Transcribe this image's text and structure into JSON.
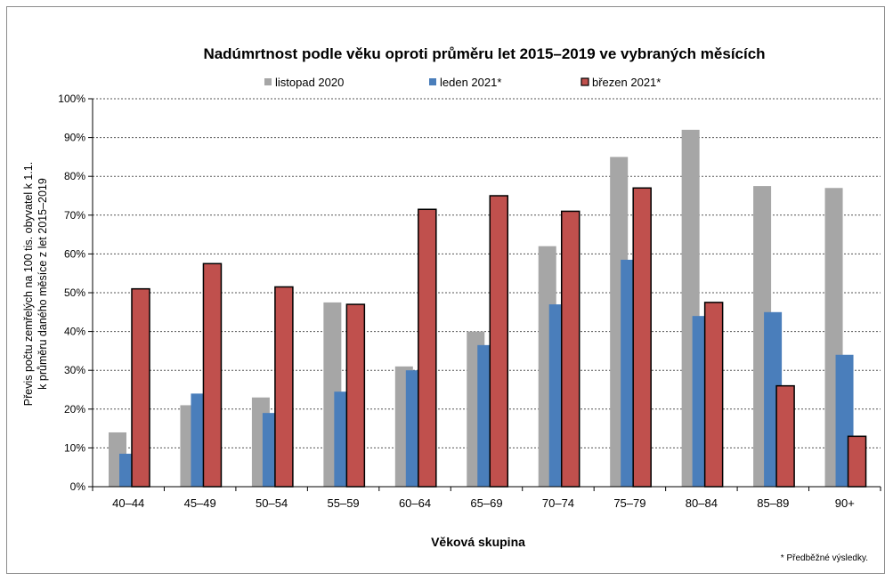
{
  "chart_data": {
    "type": "bar",
    "title": "Nadúmrtnost podle věku oproti průměru let 2015–2019 ve vybraných měsících",
    "xlabel": "Věková skupina",
    "ylabel_lines": [
      "Převis počtu zemřelých na 100 tis. obyvatel k 1.1.",
      "k průměru daného měsíce z let 2015–2019"
    ],
    "categories": [
      "40–44",
      "45–49",
      "50–54",
      "55–59",
      "60–64",
      "65–69",
      "70–74",
      "75–79",
      "80–84",
      "85–89",
      "90+"
    ],
    "ylim": [
      0,
      100
    ],
    "yticks": [
      0,
      10,
      20,
      30,
      40,
      50,
      60,
      70,
      80,
      90,
      100
    ],
    "ytick_labels": [
      "0%",
      "10%",
      "20%",
      "30%",
      "40%",
      "50%",
      "60%",
      "70%",
      "80%",
      "90%",
      "100%"
    ],
    "grid": true,
    "legend_position": "top",
    "series": [
      {
        "name": "listopad 2020",
        "color": "#a6a6a6",
        "values": [
          14,
          21,
          23,
          47.5,
          31,
          40,
          62,
          85,
          92,
          77.5,
          77
        ]
      },
      {
        "name": "leden 2021*",
        "color": "#4a7ebb",
        "values": [
          8.5,
          24,
          19,
          24.5,
          30,
          36.5,
          47,
          58.5,
          44,
          45,
          34
        ]
      },
      {
        "name": "březen 2021*",
        "color": "#c0504d",
        "values": [
          51,
          57.5,
          51.5,
          47,
          71.5,
          75,
          71,
          77,
          47.5,
          26,
          13
        ]
      }
    ],
    "footnote": "* Předběžné výsledky."
  }
}
